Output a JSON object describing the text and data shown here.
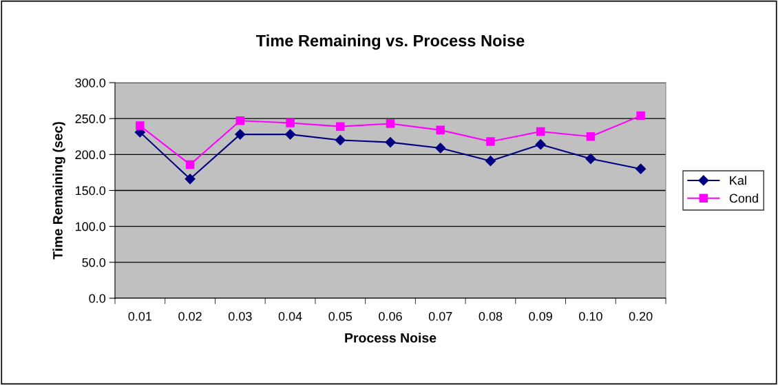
{
  "chart_data": {
    "type": "line",
    "title": "Time Remaining vs. Process Noise",
    "xlabel": "Process Noise",
    "ylabel": "Time Remaining (sec)",
    "categories": [
      "0.01",
      "0.02",
      "0.03",
      "0.04",
      "0.05",
      "0.06",
      "0.07",
      "0.08",
      "0.09",
      "0.10",
      "0.20"
    ],
    "series": [
      {
        "name": "Kal",
        "color": "#000080",
        "marker": "diamond",
        "values": [
          231,
          166,
          228,
          228,
          220,
          217,
          209,
          191,
          214,
          194,
          180
        ]
      },
      {
        "name": "Cond",
        "color": "#ff00ff",
        "marker": "square",
        "values": [
          240,
          186,
          247,
          244,
          239,
          243,
          234,
          218,
          232,
          225,
          254
        ]
      }
    ],
    "ylim": [
      0,
      300
    ],
    "yticks": [
      {
        "value": 0,
        "label": "0.0"
      },
      {
        "value": 50,
        "label": "50.0"
      },
      {
        "value": 100,
        "label": "100.0"
      },
      {
        "value": 150,
        "label": "150.0"
      },
      {
        "value": 200,
        "label": "200.0"
      },
      {
        "value": 250,
        "label": "250.0"
      },
      {
        "value": 300,
        "label": "300.0"
      }
    ],
    "grid": "y",
    "legend": "right",
    "line_style": "solid"
  }
}
